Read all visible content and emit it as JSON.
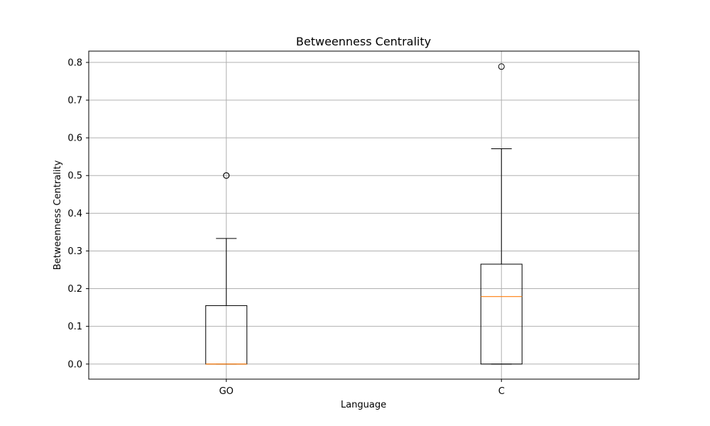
{
  "chart_data": {
    "type": "box",
    "title": "Betweenness Centrality",
    "xlabel": "Language",
    "ylabel": "Betweenness Centrality",
    "categories": [
      "GO",
      "C"
    ],
    "ylim": [
      -0.04,
      0.83
    ],
    "yticks": [
      0.0,
      0.1,
      0.2,
      0.3,
      0.4,
      0.5,
      0.6,
      0.7,
      0.8
    ],
    "ytick_labels": [
      "0.0",
      "0.1",
      "0.2",
      "0.3",
      "0.4",
      "0.5",
      "0.6",
      "0.7",
      "0.8"
    ],
    "grid": true,
    "boxes": [
      {
        "category": "GO",
        "whisker_low": 0.0,
        "q1": 0.0,
        "median": 0.0,
        "q3": 0.155,
        "whisker_high": 0.333,
        "outliers": [
          0.5,
          0.5
        ]
      },
      {
        "category": "C",
        "whisker_low": 0.0,
        "q1": 0.0,
        "median": 0.179,
        "q3": 0.265,
        "whisker_high": 0.571,
        "outliers": [
          0.789
        ]
      }
    ],
    "colors": {
      "box": "#000000",
      "median": "#ff7f0e",
      "grid": "#b0b0b0",
      "background": "#ffffff"
    }
  }
}
